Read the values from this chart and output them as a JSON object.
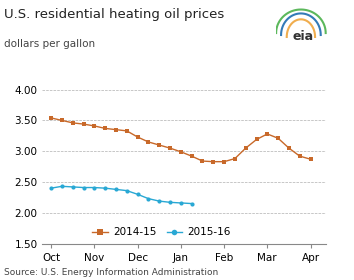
{
  "title": "U.S. residential heating oil prices",
  "ylabel": "dollars per gallon",
  "source": "Source: U.S. Energy Information Administration",
  "ylim": [
    1.5,
    4.0
  ],
  "yticks": [
    1.5,
    2.0,
    2.5,
    3.0,
    3.5,
    4.0
  ],
  "xtick_labels": [
    "Oct",
    "Nov",
    "Dec",
    "Jan",
    "Feb",
    "Mar",
    "Apr"
  ],
  "series_2014": [
    3.54,
    3.5,
    3.46,
    3.44,
    3.41,
    3.37,
    3.35,
    3.33,
    3.23,
    3.15,
    3.1,
    3.05,
    2.99,
    2.92,
    2.84,
    2.83,
    2.83,
    2.88,
    3.05,
    3.19,
    3.28,
    3.21,
    3.05,
    2.92,
    2.87
  ],
  "series_2015": [
    2.4,
    2.43,
    2.42,
    2.41,
    2.41,
    2.4,
    2.38,
    2.36,
    2.3,
    2.23,
    2.19,
    2.17,
    2.16,
    2.15
  ],
  "color_2014": "#c8692a",
  "color_2015": "#29a8d4",
  "marker_2014": "s",
  "marker_2015": "o",
  "legend_labels": [
    "2014-15",
    "2015-16"
  ],
  "background_color": "#ffffff",
  "grid_color": "#b0b0b0",
  "title_fontsize": 9.5,
  "ylabel_fontsize": 7.5,
  "tick_fontsize": 7.5,
  "legend_fontsize": 7.5,
  "source_fontsize": 6.5
}
